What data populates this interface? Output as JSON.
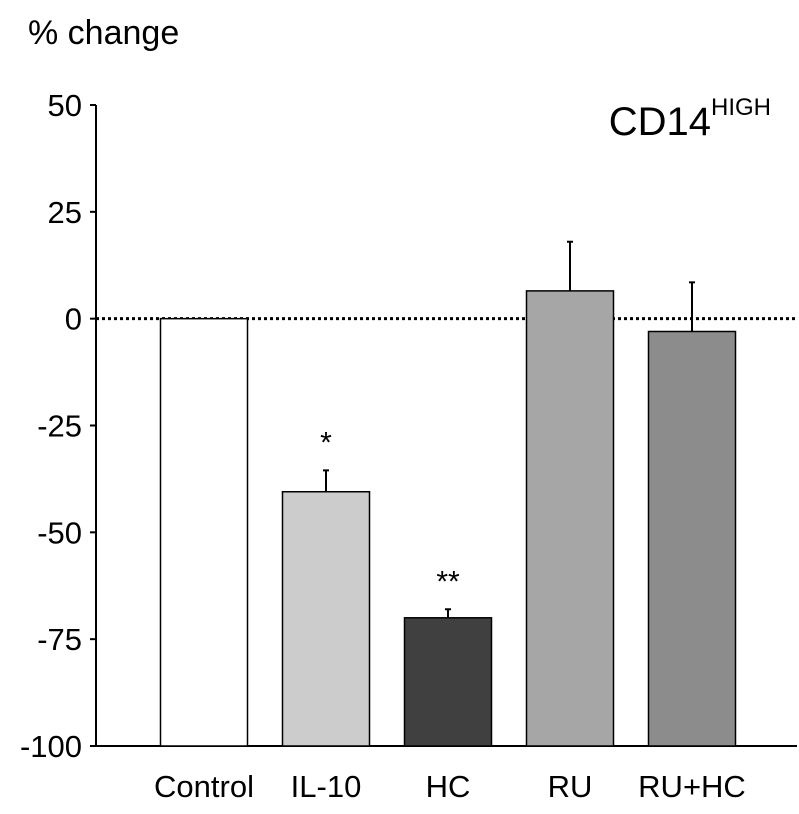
{
  "chart_data": {
    "type": "bar",
    "ylabel": "% change",
    "annotation": {
      "main": "CD14",
      "superscript": "HIGH"
    },
    "categories": [
      "Control",
      "IL-10",
      "HC",
      "RU",
      "RU+HC"
    ],
    "values": [
      0,
      -40.5,
      -70,
      6.5,
      -3
    ],
    "errors": [
      0,
      5,
      2,
      11.5,
      11.5
    ],
    "significance": [
      "",
      "*",
      "**",
      "",
      ""
    ],
    "colors": [
      "#ffffff",
      "#cccccc",
      "#404040",
      "#a6a6a6",
      "#8c8c8c"
    ],
    "ylim": [
      -100,
      50
    ],
    "yticks": [
      50,
      25,
      0,
      -25,
      -50,
      -75,
      -100
    ],
    "reference_line": {
      "y": 0,
      "style": "dotted"
    },
    "grid": false
  }
}
